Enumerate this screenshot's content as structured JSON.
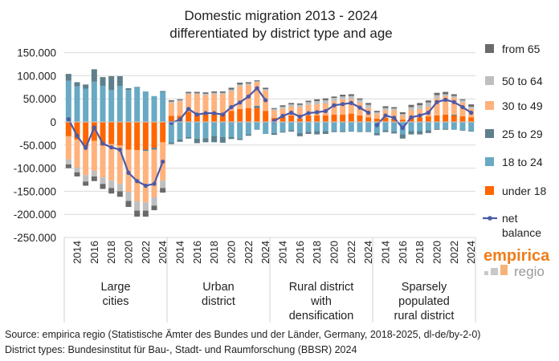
{
  "chart_data": {
    "type": "bar",
    "stacked": true,
    "title": [
      "Domestic migration 2013 - 2024",
      "differentiated by district type and age"
    ],
    "ylim": [
      -250000,
      150000
    ],
    "yticks": [
      150000,
      100000,
      50000,
      0,
      -50000,
      -100000,
      -150000,
      -200000,
      -250000
    ],
    "ytick_labels": [
      "150.000",
      "100.000",
      "50.000",
      "0",
      "-50.000",
      "-100.000",
      "-150.000",
      "-200.000",
      "-250.000"
    ],
    "grid": true,
    "legend_position": "right",
    "years": [
      2013,
      2014,
      2015,
      2016,
      2017,
      2018,
      2019,
      2020,
      2021,
      2022,
      2023,
      2024
    ],
    "xtick_labels": [
      "2014",
      "2016",
      "2018",
      "2020",
      "2022",
      "2024"
    ],
    "series_meta": [
      {
        "key": "u18",
        "name": "under 18",
        "color": "#ff6600"
      },
      {
        "key": "a18",
        "name": "18 to 24",
        "color": "#69a9c3"
      },
      {
        "key": "a25",
        "name": "25 to 29",
        "color": "#5e7f8b"
      },
      {
        "key": "a30",
        "name": "30 to 49",
        "color": "#ffb27c"
      },
      {
        "key": "a50",
        "name": "50 to 64",
        "color": "#bfbfbf"
      },
      {
        "key": "a65",
        "name": "from 65",
        "color": "#6a6a6a"
      }
    ],
    "legend_order": [
      "from 65",
      "50 to 64",
      "30 to 49",
      "25 to 29",
      "18 to 24",
      "under 18"
    ],
    "net_series": {
      "name": "net balance",
      "color": "#4b5aa8"
    },
    "groups": [
      {
        "label": [
          "Large",
          "cities"
        ],
        "u18": [
          -31000,
          -38000,
          -54000,
          -41000,
          -51000,
          -48000,
          -51000,
          -60000,
          -61000,
          -60000,
          -56000,
          -44000
        ],
        "a18": [
          89000,
          77000,
          72000,
          87000,
          78000,
          69000,
          78000,
          69000,
          75000,
          66000,
          56000,
          65000
        ],
        "a25": [
          15000,
          9000,
          9000,
          27000,
          19000,
          30000,
          21000,
          4000,
          1000,
          -3000,
          -4000,
          2000
        ],
        "a30": [
          -50000,
          -61000,
          -61000,
          -65000,
          -69000,
          -79000,
          -83000,
          -91000,
          -111000,
          -111000,
          -103000,
          -83000
        ],
        "a50": [
          -11000,
          -10000,
          -14000,
          -12000,
          -14000,
          -16000,
          -16000,
          -20000,
          -20000,
          -18000,
          -18000,
          -16000
        ],
        "a65": [
          -8000,
          -9000,
          -9000,
          -10000,
          -11000,
          -12000,
          -12000,
          -13000,
          -13000,
          -13000,
          -10000,
          -10000
        ],
        "net": [
          6000,
          -30000,
          -56000,
          -12000,
          -47000,
          -55000,
          -60000,
          -110000,
          -128000,
          -138000,
          -134000,
          -86000
        ]
      },
      {
        "label": [
          "Urban",
          "district"
        ],
        "u18": [
          13000,
          13000,
          22000,
          19000,
          19000,
          19000,
          19000,
          24000,
          28000,
          30000,
          30000,
          24000
        ],
        "a18": [
          -44000,
          -38000,
          -33000,
          -36000,
          -35000,
          -30000,
          -33000,
          -33000,
          -36000,
          -27000,
          -17000,
          -26000
        ],
        "a25": [
          -4000,
          -5000,
          -3000,
          -10000,
          -9000,
          -14000,
          -12000,
          -4000,
          -3000,
          -3000,
          5000,
          0
        ],
        "a30": [
          28000,
          31000,
          38000,
          41000,
          39000,
          41000,
          41000,
          42000,
          49000,
          50000,
          51000,
          44000
        ],
        "a50": [
          3000,
          3000,
          2000,
          2000,
          3000,
          3000,
          3000,
          4000,
          4000,
          3000,
          2000,
          3000
        ],
        "a65": [
          3000,
          2000,
          3000,
          3000,
          3000,
          3000,
          3000,
          4000,
          4000,
          3000,
          2000,
          3000
        ],
        "net": [
          -2000,
          5000,
          28000,
          16000,
          19000,
          19000,
          16000,
          32000,
          42000,
          55000,
          73000,
          47000
        ]
      },
      {
        "label": [
          "Rural district",
          "with",
          "densification"
        ],
        "u18": [
          9000,
          12000,
          14000,
          7000,
          14000,
          14000,
          14000,
          16000,
          16000,
          18000,
          14000,
          10000
        ],
        "a18": [
          -24000,
          -21000,
          -18000,
          -24000,
          -21000,
          -20000,
          -20000,
          -20000,
          -20000,
          -20000,
          -21000,
          -21000
        ],
        "a25": [
          -4000,
          -2000,
          -3000,
          -7000,
          -5000,
          -7000,
          -6000,
          -2000,
          -2000,
          -1000,
          -1000,
          -1000
        ],
        "a30": [
          16000,
          16000,
          19000,
          25000,
          23000,
          25000,
          26000,
          29000,
          33000,
          31000,
          28000,
          20000
        ],
        "a50": [
          3000,
          5000,
          5000,
          5000,
          6000,
          6000,
          7000,
          7000,
          6000,
          7000,
          6000,
          7000
        ],
        "a65": [
          2000,
          3000,
          3000,
          3000,
          3000,
          4000,
          4000,
          3000,
          4000,
          4000,
          3000,
          4000
        ],
        "net": [
          2000,
          13000,
          20000,
          11500,
          19000,
          21000,
          23500,
          36000,
          38500,
          41000,
          31000,
          20000
        ]
      },
      {
        "label": [
          "Sparsely",
          "populated",
          "rural district"
        ],
        "u18": [
          7000,
          9000,
          7000,
          5000,
          9000,
          10000,
          12000,
          14000,
          16000,
          14000,
          12000,
          10000
        ],
        "a18": [
          -24000,
          -18000,
          -21000,
          -27000,
          -20000,
          -20000,
          -18000,
          -15000,
          -15000,
          -17000,
          -18000,
          -20000
        ],
        "a25": [
          -5000,
          -4000,
          -4000,
          -9000,
          -7000,
          -7000,
          -6000,
          -2000,
          -2000,
          2000,
          -1000,
          -1000
        ],
        "a30": [
          11000,
          16000,
          18000,
          9000,
          16000,
          18000,
          21000,
          37000,
          40000,
          36000,
          30000,
          18000
        ],
        "a50": [
          3000,
          5000,
          4000,
          3000,
          7000,
          8000,
          9000,
          7000,
          4000,
          4000,
          5000,
          5000
        ],
        "a65": [
          3000,
          4000,
          3000,
          4000,
          5000,
          5000,
          4500,
          5000,
          5000,
          4000,
          2000,
          5000
        ],
        "net": [
          -7000,
          14000,
          9000,
          -13000,
          10000,
          14000,
          20000,
          43000,
          48000,
          43000,
          32000,
          20000
        ]
      }
    ]
  },
  "logo": {
    "line1": "empirica",
    "line2": "regio",
    "color1": "#f07d1a",
    "color2": "#9a9a9a"
  },
  "footer": {
    "source": "Source: empirica regio (Statistische Ämter des Bundes und der Länder, Germany, 2018-2025, dl-de/by-2-0)",
    "district_types": "District types: Bundesinstitut für Bau-, Stadt- und Raumforschung (BBSR) 2024"
  }
}
